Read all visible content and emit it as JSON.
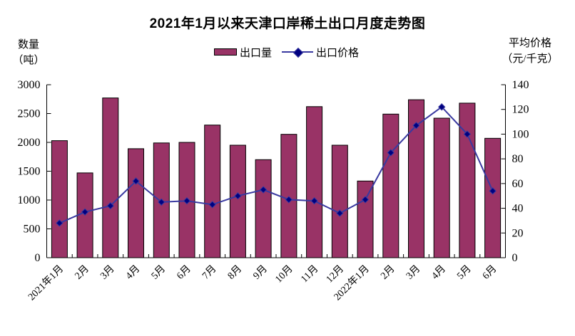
{
  "title": "2021年1月以来天津口岸稀土出口月度走势图",
  "axes": {
    "left_title_line1": "数量",
    "left_title_line2": "（吨）",
    "right_title_line1": "平均价格",
    "right_title_line2": "（元/千克）"
  },
  "legend": {
    "bar_label": "出口量",
    "line_label": "出口价格"
  },
  "colors": {
    "bar_fill": "#993366",
    "bar_border": "#000000",
    "line": "#3939A0",
    "marker_fill": "#000080",
    "axis": "#000000",
    "background": "#FFFFFF"
  },
  "chart_data": {
    "type": "bar",
    "subtype": "bar-and-line-combo",
    "title": "2021年1月以来天津口岸稀土出口月度走势图",
    "categories": [
      "2021年1月",
      "2月",
      "3月",
      "4月",
      "5月",
      "6月",
      "7月",
      "8月",
      "9月",
      "10月",
      "11月",
      "12月",
      "2022年1月",
      "2月",
      "3月",
      "4月",
      "5月",
      "6月"
    ],
    "series": [
      {
        "name": "出口量",
        "type": "bar",
        "axis": "left",
        "values": [
          2030,
          1470,
          2770,
          1890,
          1990,
          2000,
          2300,
          1950,
          1700,
          2140,
          2620,
          1950,
          1330,
          2490,
          2740,
          2420,
          2680,
          2070
        ]
      },
      {
        "name": "出口价格",
        "type": "line",
        "axis": "right",
        "values": [
          28,
          37,
          42,
          62,
          45,
          46,
          43,
          50,
          55,
          47,
          46,
          36,
          47,
          85,
          107,
          122,
          100,
          54
        ]
      }
    ],
    "left_axis": {
      "label": "数量（吨）",
      "min": 0,
      "max": 3000,
      "step": 500,
      "ticks": [
        0,
        500,
        1000,
        1500,
        2000,
        2500,
        3000
      ]
    },
    "right_axis": {
      "label": "平均价格（元/千克）",
      "min": 0,
      "max": 140,
      "step": 20,
      "ticks": [
        0,
        20,
        40,
        60,
        80,
        100,
        120,
        140
      ]
    },
    "grid": false,
    "legend_position": "top-center",
    "x_label_rotation": -45
  }
}
